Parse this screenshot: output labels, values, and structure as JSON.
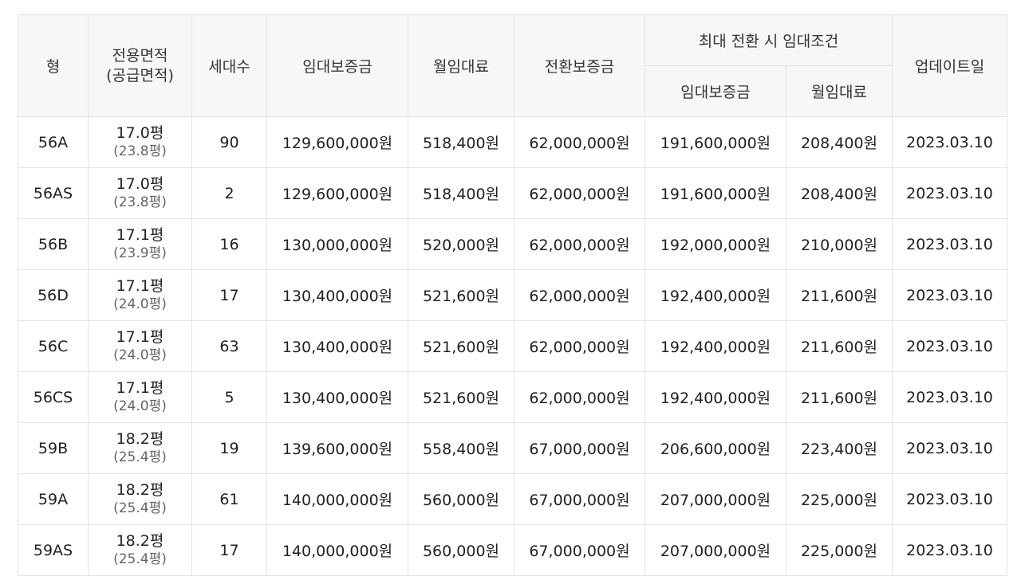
{
  "header": {
    "type": "형",
    "area_line1": "전용면적",
    "area_line2": "(공급면적)",
    "households": "세대수",
    "deposit": "임대보증금",
    "monthly_rent": "월임대료",
    "conversion_deposit": "전환보증금",
    "max_conversion_group": "최대 전환 시 임대조건",
    "max_deposit": "임대보증금",
    "max_monthly_rent": "월임대료",
    "updated": "업데이트일"
  },
  "rows": [
    {
      "type": "56A",
      "area": "17.0평",
      "supply": "(23.8평)",
      "households": "90",
      "deposit": "129,600,000원",
      "rent": "518,400원",
      "conversion": "62,000,000원",
      "max_deposit": "191,600,000원",
      "max_rent": "208,400원",
      "updated": "2023.03.10"
    },
    {
      "type": "56AS",
      "area": "17.0평",
      "supply": "(23.8평)",
      "households": "2",
      "deposit": "129,600,000원",
      "rent": "518,400원",
      "conversion": "62,000,000원",
      "max_deposit": "191,600,000원",
      "max_rent": "208,400원",
      "updated": "2023.03.10"
    },
    {
      "type": "56B",
      "area": "17.1평",
      "supply": "(23.9평)",
      "households": "16",
      "deposit": "130,000,000원",
      "rent": "520,000원",
      "conversion": "62,000,000원",
      "max_deposit": "192,000,000원",
      "max_rent": "210,000원",
      "updated": "2023.03.10"
    },
    {
      "type": "56D",
      "area": "17.1평",
      "supply": "(24.0평)",
      "households": "17",
      "deposit": "130,400,000원",
      "rent": "521,600원",
      "conversion": "62,000,000원",
      "max_deposit": "192,400,000원",
      "max_rent": "211,600원",
      "updated": "2023.03.10"
    },
    {
      "type": "56C",
      "area": "17.1평",
      "supply": "(24.0평)",
      "households": "63",
      "deposit": "130,400,000원",
      "rent": "521,600원",
      "conversion": "62,000,000원",
      "max_deposit": "192,400,000원",
      "max_rent": "211,600원",
      "updated": "2023.03.10"
    },
    {
      "type": "56CS",
      "area": "17.1평",
      "supply": "(24.0평)",
      "households": "5",
      "deposit": "130,400,000원",
      "rent": "521,600원",
      "conversion": "62,000,000원",
      "max_deposit": "192,400,000원",
      "max_rent": "211,600원",
      "updated": "2023.03.10"
    },
    {
      "type": "59B",
      "area": "18.2평",
      "supply": "(25.4평)",
      "households": "19",
      "deposit": "139,600,000원",
      "rent": "558,400원",
      "conversion": "67,000,000원",
      "max_deposit": "206,600,000원",
      "max_rent": "223,400원",
      "updated": "2023.03.10"
    },
    {
      "type": "59A",
      "area": "18.2평",
      "supply": "(25.4평)",
      "households": "61",
      "deposit": "140,000,000원",
      "rent": "560,000원",
      "conversion": "67,000,000원",
      "max_deposit": "207,000,000원",
      "max_rent": "225,000원",
      "updated": "2023.03.10"
    },
    {
      "type": "59AS",
      "area": "18.2평",
      "supply": "(25.4평)",
      "households": "17",
      "deposit": "140,000,000원",
      "rent": "560,000원",
      "conversion": "67,000,000원",
      "max_deposit": "207,000,000원",
      "max_rent": "225,000원",
      "updated": "2023.03.10"
    }
  ]
}
